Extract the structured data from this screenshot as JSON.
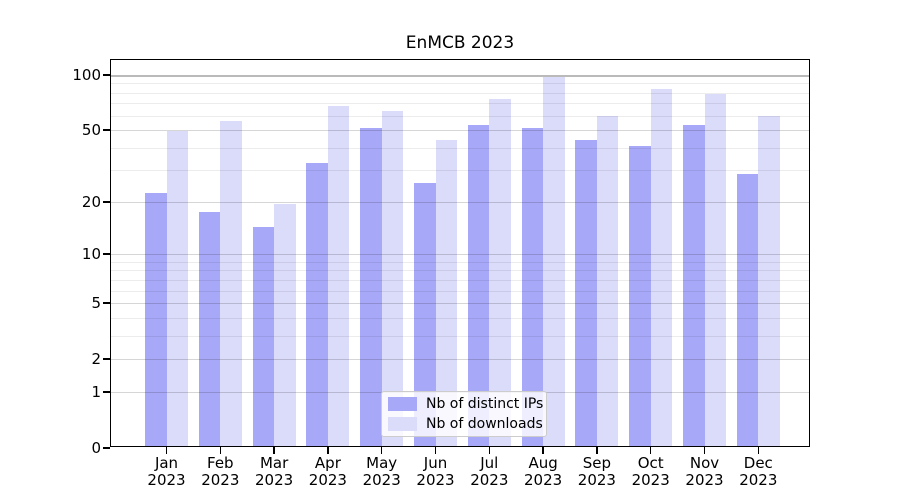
{
  "title": "EnMCB 2023",
  "colors": {
    "distinct_ips_bar": "#a8a8f8",
    "downloads_bar": "#dbdbfa",
    "axis": "#000000",
    "legend_border": "#cccccc"
  },
  "legend": {
    "items": [
      {
        "label": "Nb of distinct IPs",
        "color": "#a8a8f8"
      },
      {
        "label": "Nb of downloads",
        "color": "#dbdbfa"
      }
    ]
  },
  "chart_data": {
    "type": "bar",
    "title": "EnMCB 2023",
    "categories": [
      "Jan 2023",
      "Feb 2023",
      "Mar 2023",
      "Apr 2023",
      "May 2023",
      "Jun 2023",
      "Jul 2023",
      "Aug 2023",
      "Sep 2023",
      "Oct 2023",
      "Nov 2023",
      "Dec 2023"
    ],
    "x_tick_months": [
      "Jan",
      "Feb",
      "Mar",
      "Apr",
      "May",
      "Jun",
      "Jul",
      "Aug",
      "Sep",
      "Oct",
      "Nov",
      "Dec"
    ],
    "x_tick_year": "2023",
    "series": [
      {
        "name": "Nb of distinct IPs",
        "color": "#a8a8f8",
        "values": [
          22,
          17,
          14,
          32,
          50,
          25,
          52,
          50,
          43,
          40,
          52,
          28
        ]
      },
      {
        "name": "Nb of downloads",
        "color": "#dbdbfa",
        "values": [
          48,
          55,
          19,
          66,
          62,
          43,
          72,
          95,
          58,
          82,
          77,
          58
        ]
      }
    ],
    "xlabel": "",
    "ylabel": "",
    "y_scale": "log1p",
    "ylim": [
      0,
      121
    ],
    "y_major_ticks": [
      0,
      1,
      2,
      5,
      10,
      20,
      50,
      100
    ],
    "y_major_tick_labels": [
      "0",
      "1",
      "2",
      "5",
      "10",
      "20",
      "50",
      "100"
    ],
    "y_minor_ticks": [
      3,
      4,
      6,
      7,
      8,
      9,
      30,
      40,
      60,
      70,
      80,
      90
    ],
    "grid": true,
    "legend_position": "lower center"
  }
}
